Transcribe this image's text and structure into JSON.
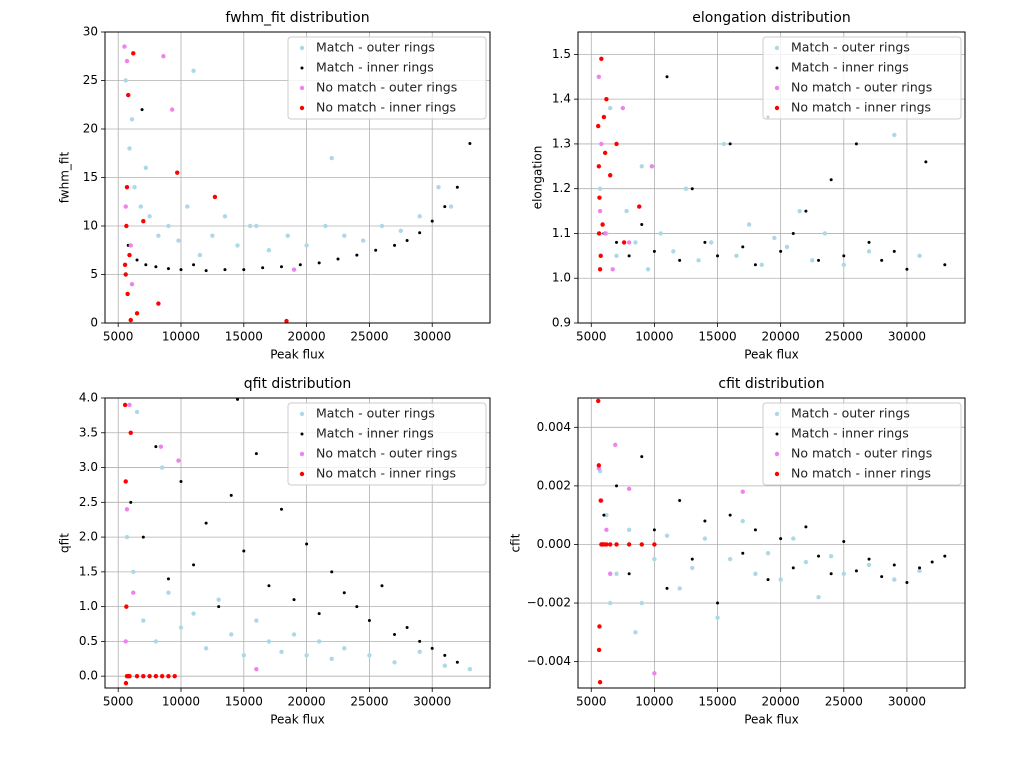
{
  "chart_data": [
    {
      "type": "scatter",
      "title": "fwhm_fit distribution",
      "xlabel": "Peak flux",
      "ylabel": "fwhm_fit",
      "xlim": [
        3950,
        34600
      ],
      "ylim": [
        0,
        30
      ],
      "xticks": [
        5000,
        10000,
        15000,
        20000,
        25000,
        30000
      ],
      "yticks": [
        0,
        5,
        10,
        15,
        20,
        25,
        30
      ],
      "grid": true,
      "legend": "upper right",
      "series": [
        {
          "name": "Match - outer rings",
          "color": "#add8e6",
          "x": [
            5600,
            5900,
            6300,
            6800,
            7500,
            8200,
            9000,
            9800,
            10500,
            11500,
            12500,
            13500,
            14500,
            15500,
            17000,
            18500,
            20000,
            21500,
            23000,
            24500,
            26000,
            27500,
            29000,
            30500,
            31500,
            6100,
            7200,
            11000,
            16000,
            22000
          ],
          "values": [
            25,
            18,
            14,
            12,
            11,
            9,
            10,
            8.5,
            12,
            7,
            9,
            11,
            8,
            10,
            7.5,
            9,
            8,
            10,
            9,
            8.5,
            10,
            9.5,
            11,
            14,
            12,
            21,
            16,
            26,
            10,
            17
          ]
        },
        {
          "name": "Match - inner rings",
          "color": "#000000",
          "x": [
            5800,
            6500,
            7200,
            8000,
            9000,
            10000,
            11000,
            12000,
            13500,
            15000,
            16500,
            18000,
            19500,
            21000,
            22500,
            24000,
            25500,
            27000,
            28000,
            29000,
            30000,
            31000,
            32000,
            33000,
            6900
          ],
          "values": [
            8,
            6.5,
            6,
            5.8,
            5.6,
            5.5,
            6,
            5.4,
            5.5,
            5.5,
            5.7,
            5.8,
            6,
            6.2,
            6.6,
            7,
            7.5,
            8,
            8.5,
            9.3,
            10.5,
            12,
            14,
            18.5,
            22
          ]
        },
        {
          "name": "No match - outer rings",
          "color": "#ee82ee",
          "x": [
            5500,
            5700,
            6100,
            8600,
            9300,
            5600,
            6000,
            19000
          ],
          "values": [
            28.5,
            27,
            4,
            27.5,
            22,
            12,
            8,
            5.5
          ]
        },
        {
          "name": "No match - inner rings",
          "color": "#ff0000",
          "x": [
            5600,
            5650,
            5700,
            5750,
            5800,
            5900,
            6000,
            6200,
            6500,
            7000,
            8200,
            9700,
            12700,
            18400,
            5550
          ],
          "values": [
            5,
            10,
            14,
            3,
            23.5,
            7,
            0.3,
            27.8,
            1,
            10.5,
            2,
            15.5,
            13,
            0.2,
            6
          ]
        }
      ]
    },
    {
      "type": "scatter",
      "title": "elongation distribution",
      "xlabel": "Peak flux",
      "ylabel": "elongation",
      "xlim": [
        3950,
        34600
      ],
      "ylim": [
        0.9,
        1.55
      ],
      "xticks": [
        5000,
        10000,
        15000,
        20000,
        25000,
        30000
      ],
      "yticks": [
        0.9,
        {
          "value": 1.0,
          "label": "1.0"
        },
        1.1,
        1.2,
        1.3,
        1.4,
        1.5
      ],
      "grid": true,
      "legend": "upper right",
      "series": [
        {
          "name": "Match - outer rings",
          "color": "#add8e6",
          "x": [
            5700,
            6200,
            7000,
            7800,
            8500,
            9500,
            10500,
            11500,
            12500,
            13500,
            14500,
            15500,
            16500,
            17500,
            18500,
            19500,
            20500,
            21500,
            22500,
            23500,
            25000,
            27000,
            29000,
            31000,
            6500,
            9000
          ],
          "values": [
            1.2,
            1.1,
            1.05,
            1.15,
            1.08,
            1.02,
            1.1,
            1.06,
            1.2,
            1.04,
            1.08,
            1.3,
            1.05,
            1.12,
            1.03,
            1.09,
            1.07,
            1.15,
            1.04,
            1.1,
            1.03,
            1.06,
            1.32,
            1.05,
            1.38,
            1.25
          ]
        },
        {
          "name": "Match - inner rings",
          "color": "#000000",
          "x": [
            6000,
            7000,
            8000,
            9000,
            10000,
            11000,
            12000,
            13000,
            14000,
            15000,
            16000,
            17000,
            18000,
            19000,
            20000,
            21000,
            22000,
            23000,
            24000,
            25000,
            26000,
            27000,
            28000,
            29000,
            30000,
            31500,
            33000
          ],
          "values": [
            1.1,
            1.08,
            1.05,
            1.12,
            1.06,
            1.45,
            1.04,
            1.2,
            1.08,
            1.05,
            1.3,
            1.07,
            1.03,
            1.36,
            1.06,
            1.1,
            1.15,
            1.04,
            1.22,
            1.05,
            1.3,
            1.08,
            1.04,
            1.06,
            1.02,
            1.26,
            1.03
          ]
        },
        {
          "name": "No match - outer rings",
          "color": "#ee82ee",
          "x": [
            5600,
            5800,
            6100,
            7500,
            9800,
            6700,
            8000,
            5700
          ],
          "values": [
            1.45,
            1.3,
            1.1,
            1.38,
            1.25,
            1.02,
            1.08,
            1.15
          ]
        },
        {
          "name": "No match - inner rings",
          "color": "#ff0000",
          "x": [
            5550,
            5600,
            5650,
            5700,
            5800,
            5900,
            6000,
            6200,
            6500,
            7000,
            7600,
            8800,
            5750,
            6100,
            5620
          ],
          "values": [
            1.34,
            1.25,
            1.18,
            1.02,
            1.49,
            1.12,
            1.36,
            1.4,
            1.23,
            1.3,
            1.08,
            1.16,
            1.05,
            1.28,
            1.1
          ]
        }
      ]
    },
    {
      "type": "scatter",
      "title": "qfit distribution",
      "xlabel": "Peak flux",
      "ylabel": "qfit",
      "xlim": [
        3950,
        34600
      ],
      "ylim": [
        -0.17,
        4.0
      ],
      "xticks": [
        5000,
        10000,
        15000,
        20000,
        25000,
        30000
      ],
      "yticks": [
        {
          "value": 0,
          "label": "0.0"
        },
        0.5,
        {
          "value": 1,
          "label": "1.0"
        },
        1.5,
        {
          "value": 2,
          "label": "2.0"
        },
        2.5,
        {
          "value": 3,
          "label": "3.0"
        },
        3.5,
        {
          "value": 4,
          "label": "4.0"
        }
      ],
      "grid": true,
      "legend": "upper right",
      "series": [
        {
          "name": "Match - outer rings",
          "color": "#add8e6",
          "x": [
            5700,
            6200,
            7000,
            8000,
            9000,
            10000,
            11000,
            12000,
            13000,
            14000,
            15000,
            16000,
            17000,
            18000,
            19000,
            20000,
            21000,
            22000,
            23000,
            25000,
            27000,
            29000,
            31000,
            33000,
            6500,
            8500
          ],
          "values": [
            2.0,
            1.5,
            0.8,
            0.5,
            1.2,
            0.7,
            0.9,
            0.4,
            1.1,
            0.6,
            0.3,
            0.8,
            0.5,
            0.35,
            0.6,
            0.3,
            0.5,
            0.25,
            0.4,
            0.3,
            0.2,
            0.35,
            0.15,
            0.1,
            3.8,
            3.0
          ]
        },
        {
          "name": "Match - inner rings",
          "color": "#000000",
          "x": [
            6000,
            7000,
            8000,
            9000,
            10000,
            11000,
            12000,
            13000,
            14000,
            15000,
            16000,
            17000,
            18000,
            19000,
            20000,
            21000,
            22000,
            23000,
            24000,
            25000,
            26000,
            27000,
            28000,
            29000,
            30000,
            31000,
            32000,
            14500
          ],
          "values": [
            2.5,
            2.0,
            3.3,
            1.4,
            2.8,
            1.6,
            2.2,
            1.0,
            2.6,
            1.8,
            3.2,
            1.3,
            2.4,
            1.1,
            1.9,
            0.9,
            1.5,
            1.2,
            1.0,
            0.8,
            1.3,
            0.6,
            0.7,
            0.5,
            0.4,
            0.3,
            0.2,
            3.98
          ]
        },
        {
          "name": "No match - outer rings",
          "color": "#ee82ee",
          "x": [
            5600,
            5900,
            6200,
            7000,
            8400,
            9800,
            16000,
            5700
          ],
          "values": [
            0.5,
            3.9,
            1.2,
            0.0,
            3.3,
            3.1,
            0.1,
            2.4
          ]
        },
        {
          "name": "No match - inner rings",
          "color": "#ff0000",
          "x": [
            5550,
            5600,
            5650,
            5700,
            5800,
            5900,
            6000,
            6500,
            7000,
            7500,
            8000,
            8500,
            9000,
            9500,
            5620
          ],
          "values": [
            3.9,
            2.8,
            1.0,
            0.0,
            0.0,
            0.0,
            3.5,
            0.0,
            0.0,
            0.0,
            0.0,
            0.0,
            0.0,
            0.0,
            -0.1
          ]
        }
      ]
    },
    {
      "type": "scatter",
      "title": "cfit distribution",
      "xlabel": "Peak flux",
      "ylabel": "cfit",
      "xlim": [
        3950,
        34600
      ],
      "ylim": [
        -0.0049,
        0.005
      ],
      "xticks": [
        5000,
        10000,
        15000,
        20000,
        25000,
        30000
      ],
      "yticks": [
        {
          "value": -0.004,
          "label": "−0.004"
        },
        {
          "value": -0.002,
          "label": "−0.002"
        },
        {
          "value": 0,
          "label": "0.000"
        },
        0.002,
        0.004
      ],
      "grid": true,
      "legend": "upper right",
      "series": [
        {
          "name": "Match - outer rings",
          "color": "#add8e6",
          "x": [
            5700,
            6200,
            7000,
            8000,
            9000,
            10000,
            11000,
            12000,
            13000,
            14000,
            15000,
            16000,
            17000,
            18000,
            19000,
            20000,
            21000,
            22000,
            23000,
            24000,
            25000,
            27000,
            29000,
            31000,
            6500,
            8500
          ],
          "values": [
            0.0025,
            0.001,
            -0.001,
            0.0005,
            -0.002,
            -0.0005,
            0.0003,
            -0.0015,
            -0.0008,
            0.0002,
            -0.0025,
            -0.0005,
            0.0008,
            -0.001,
            -0.0003,
            -0.0012,
            0.0002,
            -0.0006,
            -0.0018,
            -0.0004,
            -0.001,
            -0.0007,
            -0.0012,
            -0.0009,
            -0.002,
            -0.003
          ]
        },
        {
          "name": "Match - inner rings",
          "color": "#000000",
          "x": [
            6000,
            7000,
            8000,
            9000,
            10000,
            11000,
            12000,
            13000,
            14000,
            15000,
            16000,
            17000,
            18000,
            19000,
            20000,
            21000,
            22000,
            23000,
            24000,
            25000,
            26000,
            27000,
            28000,
            29000,
            30000,
            31000,
            32000,
            33000
          ],
          "values": [
            0.001,
            0.002,
            -0.001,
            0.003,
            0.0005,
            -0.0015,
            0.0015,
            -0.0005,
            0.0008,
            -0.002,
            0.001,
            -0.0003,
            0.0005,
            -0.0012,
            0.0002,
            -0.0008,
            0.0006,
            -0.0004,
            -0.001,
            0.0001,
            -0.0009,
            -0.0005,
            -0.0011,
            -0.0007,
            -0.0013,
            -0.0008,
            -0.0006,
            -0.0004
          ]
        },
        {
          "name": "No match - outer rings",
          "color": "#ee82ee",
          "x": [
            5600,
            5800,
            6200,
            6900,
            8000,
            10000,
            17000,
            6500
          ],
          "values": [
            0.0026,
            0.0015,
            0.0005,
            0.0034,
            0.0019,
            -0.0044,
            0.0018,
            -0.001
          ]
        },
        {
          "name": "No match - inner rings",
          "color": "#ff0000",
          "x": [
            5550,
            5600,
            5650,
            5700,
            5800,
            5900,
            6000,
            6200,
            6500,
            7000,
            8000,
            9000,
            10000,
            5620,
            5750
          ],
          "values": [
            0.0049,
            0.0027,
            -0.0028,
            -0.0047,
            0.0,
            0.0,
            0.0,
            0.0,
            0.0,
            0.0,
            0.0,
            0.0,
            0.0,
            -0.0036,
            0.0015
          ]
        }
      ]
    }
  ]
}
